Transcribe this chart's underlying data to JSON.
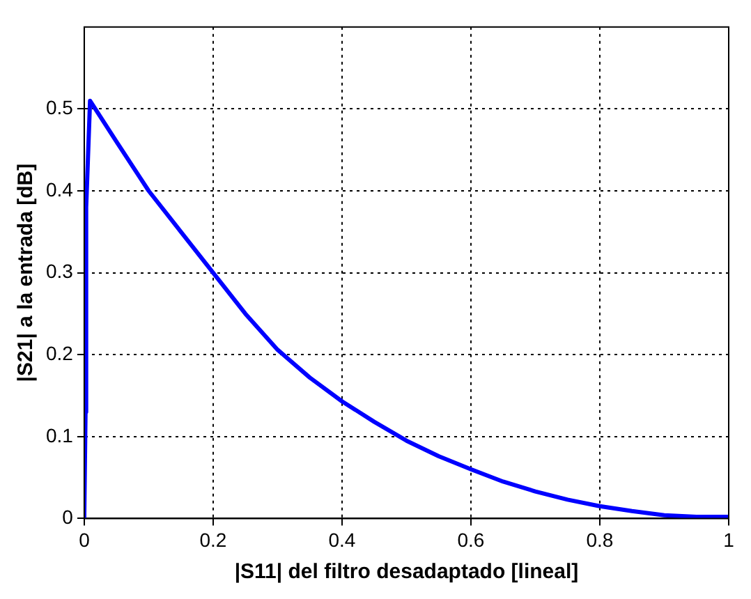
{
  "chart_data": {
    "type": "line",
    "xlabel": "|S11| del filtro desadaptado [lineal]",
    "ylabel": "|S21| a la entrada [dB]",
    "x": [
      0,
      0.002,
      0.003,
      0.009,
      0.05,
      0.1,
      0.15,
      0.2,
      0.25,
      0.3,
      0.35,
      0.4,
      0.45,
      0.5,
      0.55,
      0.6,
      0.65,
      0.7,
      0.75,
      0.8,
      0.85,
      0.9,
      0.95,
      1
    ],
    "series": [
      {
        "color": "#0000ff",
        "values": [
          0,
          0.13,
          0.38,
          0.51,
          0.46,
          0.4,
          0.35,
          0.3,
          0.25,
          0.206,
          0.172,
          0.143,
          0.118,
          0.095,
          0.076,
          0.06,
          0.045,
          0.033,
          0.023,
          0.015,
          0.009,
          0.004,
          0.002,
          0.002
        ]
      }
    ],
    "xlim": [
      0,
      1
    ],
    "xticks": [
      0,
      0.2,
      0.4,
      0.6,
      0.8,
      1
    ],
    "ylim": [
      0,
      0.6
    ],
    "yticks": [
      0,
      0.1,
      0.2,
      0.3,
      0.4,
      0.5
    ],
    "grid": true,
    "line_style": "solid",
    "marker": "none",
    "legend": false
  }
}
